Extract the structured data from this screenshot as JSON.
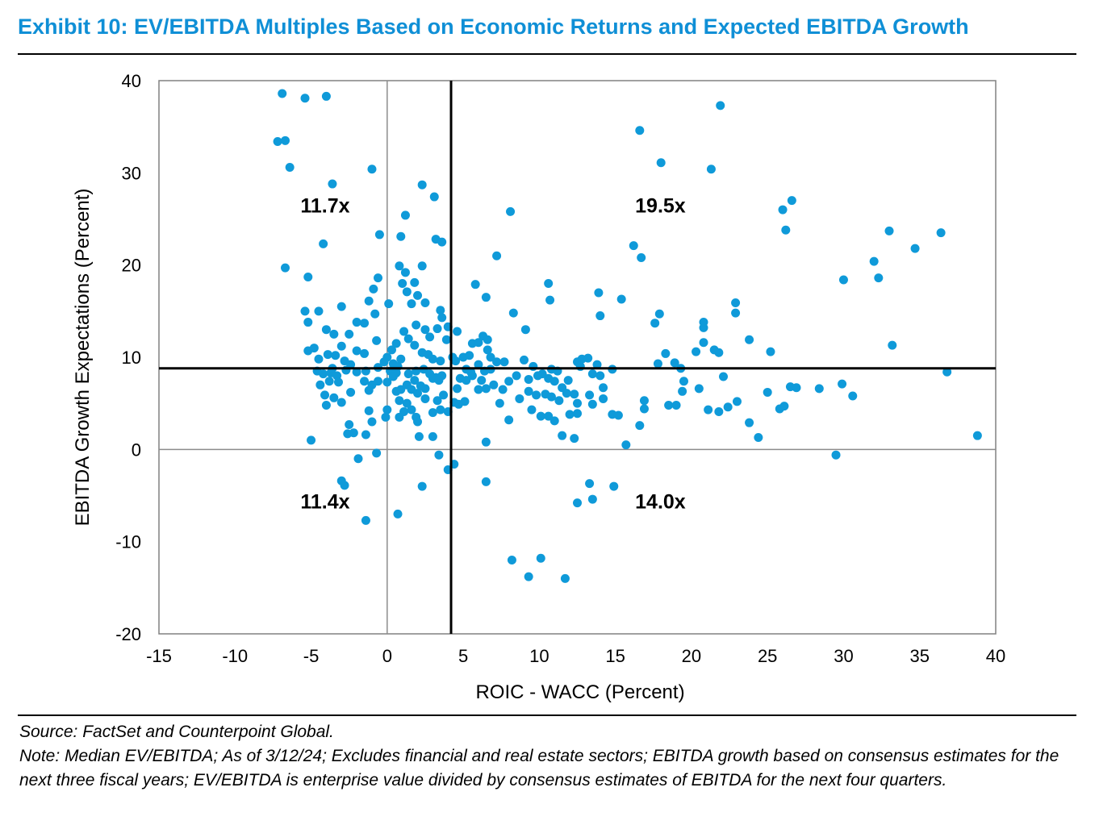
{
  "colors": {
    "title": "#0f8fd6",
    "points": "#0f9ad9",
    "axis": "#000000",
    "zero_lines": "#8c8c8c"
  },
  "footer": {
    "source": "Source: FactSet and Counterpoint Global.",
    "note": "Note: Median EV/EBITDA; As of 3/12/24; Excludes financial and real estate sectors; EBITDA growth based on consensus estimates for the next three fiscal years; EV/EBITDA is enterprise value divided by consensus estimates of EBITDA for the next four quarters."
  },
  "chart_data": {
    "type": "scatter",
    "title": "Exhibit 10: EV/EBITDA Multiples Based on Economic Returns and Expected EBITDA Growth",
    "xlabel": "ROIC - WACC (Percent)",
    "ylabel": "EBITDA Growth Expectations (Percent)",
    "xlim": [
      -15,
      40
    ],
    "ylim": [
      -20,
      40
    ],
    "xticks": [
      -15,
      -10,
      -5,
      0,
      5,
      10,
      15,
      20,
      25,
      30,
      35,
      40
    ],
    "yticks": [
      -20,
      -10,
      0,
      10,
      20,
      30,
      40
    ],
    "divider_x": 4.2,
    "divider_y": 8.8,
    "quadrant_labels": [
      {
        "text": "11.7x",
        "x": -5.7,
        "y": 25.7
      },
      {
        "text": "19.5x",
        "x": 16.3,
        "y": 25.7
      },
      {
        "text": "11.4x",
        "x": -5.7,
        "y": -6.4
      },
      {
        "text": "14.0x",
        "x": 16.3,
        "y": -6.4
      }
    ],
    "points": [
      [
        -6.9,
        38.6
      ],
      [
        -5.4,
        38.1
      ],
      [
        -4.0,
        38.3
      ],
      [
        -7.2,
        33.4
      ],
      [
        -6.7,
        33.5
      ],
      [
        -6.4,
        30.6
      ],
      [
        -1.0,
        30.4
      ],
      [
        -3.6,
        28.8
      ],
      [
        -4.2,
        22.3
      ],
      [
        -0.5,
        23.3
      ],
      [
        -6.7,
        19.7
      ],
      [
        -5.2,
        18.7
      ],
      [
        -5.4,
        15.0
      ],
      [
        -4.5,
        15.0
      ],
      [
        -5.2,
        13.8
      ],
      [
        -3.0,
        15.5
      ],
      [
        -2.0,
        13.8
      ],
      [
        -4.0,
        13.0
      ],
      [
        -3.5,
        12.5
      ],
      [
        -2.5,
        12.5
      ],
      [
        -5.2,
        10.7
      ],
      [
        -4.8,
        11.0
      ],
      [
        -4.5,
        9.8
      ],
      [
        -3.9,
        10.3
      ],
      [
        -3.4,
        10.2
      ],
      [
        -3.0,
        11.2
      ],
      [
        -2.0,
        10.7
      ],
      [
        -1.5,
        10.4
      ],
      [
        -2.8,
        9.6
      ],
      [
        -2.4,
        9.2
      ],
      [
        -3.6,
        8.8
      ],
      [
        -4.2,
        8.2
      ],
      [
        -4.6,
        8.5
      ],
      [
        -3.7,
        8.3
      ],
      [
        -3.3,
        8.0
      ],
      [
        -2.7,
        8.6
      ],
      [
        -2.0,
        8.4
      ],
      [
        -1.4,
        8.5
      ],
      [
        -3.8,
        7.4
      ],
      [
        -4.4,
        7.0
      ],
      [
        -3.2,
        7.3
      ],
      [
        -1.5,
        7.4
      ],
      [
        -1.0,
        7.0
      ],
      [
        -0.6,
        7.4
      ],
      [
        -4.1,
        5.9
      ],
      [
        -3.5,
        5.6
      ],
      [
        -3.0,
        5.1
      ],
      [
        -2.4,
        6.2
      ],
      [
        -1.2,
        6.4
      ],
      [
        -4.0,
        4.8
      ],
      [
        -1.2,
        4.2
      ],
      [
        -1.0,
        3.0
      ],
      [
        -2.5,
        2.7
      ],
      [
        -2.2,
        1.8
      ],
      [
        -2.6,
        1.7
      ],
      [
        -1.4,
        1.6
      ],
      [
        -5.0,
        1.0
      ],
      [
        -1.9,
        -1.0
      ],
      [
        -0.7,
        -0.4
      ],
      [
        -3.0,
        -3.4
      ],
      [
        -2.8,
        -3.9
      ],
      [
        -1.4,
        -7.7
      ],
      [
        0.7,
        -7.0
      ],
      [
        -1.2,
        16.1
      ],
      [
        -0.9,
        17.4
      ],
      [
        -0.6,
        18.6
      ],
      [
        -0.8,
        14.7
      ],
      [
        0.1,
        15.8
      ],
      [
        -1.5,
        13.7
      ],
      [
        -0.7,
        11.8
      ],
      [
        0.0,
        10.0
      ],
      [
        0.6,
        11.5
      ],
      [
        0.3,
        10.8
      ],
      [
        0.9,
        9.8
      ],
      [
        1.1,
        12.8
      ],
      [
        0.8,
        19.9
      ],
      [
        1.2,
        19.2
      ],
      [
        1.0,
        18.0
      ],
      [
        1.3,
        17.1
      ],
      [
        1.2,
        25.4
      ],
      [
        0.9,
        23.1
      ],
      [
        2.3,
        28.7
      ],
      [
        3.1,
        27.4
      ],
      [
        2.3,
        19.9
      ],
      [
        1.8,
        18.1
      ],
      [
        2.0,
        16.7
      ],
      [
        1.6,
        15.8
      ],
      [
        2.5,
        15.9
      ],
      [
        1.9,
        13.5
      ],
      [
        2.5,
        13.0
      ],
      [
        1.4,
        12.0
      ],
      [
        1.8,
        11.3
      ],
      [
        2.3,
        10.5
      ],
      [
        2.7,
        10.3
      ],
      [
        3.0,
        9.8
      ],
      [
        3.5,
        9.6
      ],
      [
        2.8,
        12.2
      ],
      [
        3.3,
        13.1
      ],
      [
        3.6,
        14.3
      ],
      [
        3.2,
        22.8
      ],
      [
        3.6,
        22.5
      ],
      [
        3.5,
        15.1
      ],
      [
        0.4,
        9.3
      ],
      [
        0.7,
        9.0
      ],
      [
        -0.2,
        9.5
      ],
      [
        -0.6,
        8.9
      ],
      [
        0.2,
        8.5
      ],
      [
        0.6,
        8.3
      ],
      [
        1.4,
        8.2
      ],
      [
        1.9,
        8.5
      ],
      [
        2.4,
        8.7
      ],
      [
        2.8,
        8.2
      ],
      [
        3.2,
        7.8
      ],
      [
        3.6,
        8.0
      ],
      [
        0.0,
        7.3
      ],
      [
        0.4,
        7.9
      ],
      [
        0.9,
        6.5
      ],
      [
        1.3,
        7.0
      ],
      [
        1.8,
        7.5
      ],
      [
        2.2,
        6.9
      ],
      [
        2.5,
        6.6
      ],
      [
        3.0,
        7.7
      ],
      [
        3.4,
        7.5
      ],
      [
        1.6,
        6.5
      ],
      [
        0.6,
        6.3
      ],
      [
        2.0,
        6.1
      ],
      [
        0.8,
        5.3
      ],
      [
        1.3,
        5.0
      ],
      [
        2.5,
        5.5
      ],
      [
        3.3,
        5.3
      ],
      [
        3.7,
        5.9
      ],
      [
        0.0,
        4.3
      ],
      [
        1.1,
        4.1
      ],
      [
        1.6,
        4.3
      ],
      [
        1.9,
        3.5
      ],
      [
        2.0,
        3.0
      ],
      [
        3.0,
        4.0
      ],
      [
        3.5,
        4.3
      ],
      [
        4.0,
        4.1
      ],
      [
        -0.1,
        3.5
      ],
      [
        0.8,
        3.5
      ],
      [
        2.1,
        1.4
      ],
      [
        3.0,
        1.4
      ],
      [
        3.4,
        -0.6
      ],
      [
        4.0,
        -2.2
      ],
      [
        4.4,
        -1.6
      ],
      [
        2.3,
        -4.0
      ],
      [
        4.0,
        13.3
      ],
      [
        4.6,
        12.8
      ],
      [
        3.9,
        11.9
      ],
      [
        4.3,
        10.0
      ],
      [
        4.5,
        9.6
      ],
      [
        4.8,
        7.7
      ],
      [
        4.6,
        6.6
      ],
      [
        4.4,
        5.1
      ],
      [
        4.7,
        4.9
      ],
      [
        5.1,
        5.2
      ],
      [
        5.0,
        10.0
      ],
      [
        5.4,
        10.2
      ],
      [
        5.6,
        11.5
      ],
      [
        6.0,
        11.6
      ],
      [
        6.3,
        12.3
      ],
      [
        6.6,
        11.9
      ],
      [
        6.6,
        10.8
      ],
      [
        6.8,
        10.0
      ],
      [
        5.8,
        17.9
      ],
      [
        6.5,
        16.5
      ],
      [
        7.2,
        21.0
      ],
      [
        8.1,
        25.8
      ],
      [
        8.3,
        14.8
      ],
      [
        9.1,
        13.0
      ],
      [
        10.6,
        18.0
      ],
      [
        10.7,
        16.2
      ],
      [
        13.9,
        17.0
      ],
      [
        14.0,
        14.5
      ],
      [
        15.4,
        16.3
      ],
      [
        5.2,
        8.7
      ],
      [
        5.5,
        8.4
      ],
      [
        6.0,
        9.2
      ],
      [
        6.4,
        8.5
      ],
      [
        6.8,
        8.7
      ],
      [
        7.2,
        9.5
      ],
      [
        7.7,
        9.5
      ],
      [
        5.2,
        7.5
      ],
      [
        5.6,
        8.0
      ],
      [
        6.2,
        7.5
      ],
      [
        6.5,
        6.6
      ],
      [
        7.0,
        7.0
      ],
      [
        7.6,
        6.5
      ],
      [
        8.0,
        7.4
      ],
      [
        8.5,
        8.0
      ],
      [
        6.0,
        6.5
      ],
      [
        7.4,
        5.0
      ],
      [
        8.7,
        5.5
      ],
      [
        8.0,
        3.2
      ],
      [
        6.5,
        0.8
      ],
      [
        9.0,
        9.7
      ],
      [
        9.6,
        9.0
      ],
      [
        10.2,
        8.2
      ],
      [
        10.8,
        8.7
      ],
      [
        11.2,
        8.5
      ],
      [
        9.3,
        7.6
      ],
      [
        9.9,
        8.0
      ],
      [
        10.6,
        7.7
      ],
      [
        11.0,
        7.4
      ],
      [
        11.5,
        6.7
      ],
      [
        11.9,
        7.5
      ],
      [
        9.3,
        6.3
      ],
      [
        9.8,
        5.9
      ],
      [
        10.4,
        6.0
      ],
      [
        10.8,
        5.7
      ],
      [
        11.3,
        5.3
      ],
      [
        11.8,
        6.1
      ],
      [
        12.3,
        6.0
      ],
      [
        12.5,
        5.0
      ],
      [
        9.5,
        4.3
      ],
      [
        10.1,
        3.6
      ],
      [
        10.6,
        3.6
      ],
      [
        11.0,
        3.1
      ],
      [
        12.0,
        3.8
      ],
      [
        12.5,
        3.9
      ],
      [
        11.5,
        1.5
      ],
      [
        12.3,
        1.2
      ],
      [
        12.5,
        9.5
      ],
      [
        12.8,
        9.8
      ],
      [
        13.2,
        9.9
      ],
      [
        13.8,
        9.2
      ],
      [
        14.0,
        8.0
      ],
      [
        14.8,
        8.7
      ],
      [
        12.7,
        9.0
      ],
      [
        13.5,
        8.2
      ],
      [
        14.2,
        6.7
      ],
      [
        13.3,
        5.9
      ],
      [
        14.2,
        5.5
      ],
      [
        13.5,
        4.9
      ],
      [
        14.8,
        3.8
      ],
      [
        15.2,
        3.7
      ],
      [
        15.7,
        0.5
      ],
      [
        12.5,
        -5.8
      ],
      [
        13.3,
        -3.7
      ],
      [
        13.5,
        -5.4
      ],
      [
        14.9,
        -4.0
      ],
      [
        6.5,
        -3.5
      ],
      [
        8.2,
        -12.0
      ],
      [
        9.3,
        -13.8
      ],
      [
        10.1,
        -11.8
      ],
      [
        11.7,
        -14.0
      ],
      [
        16.6,
        34.6
      ],
      [
        18.0,
        31.1
      ],
      [
        21.9,
        37.3
      ],
      [
        21.3,
        30.4
      ],
      [
        16.2,
        22.1
      ],
      [
        16.7,
        20.8
      ],
      [
        17.6,
        13.7
      ],
      [
        17.9,
        14.7
      ],
      [
        17.8,
        9.3
      ],
      [
        18.3,
        10.4
      ],
      [
        18.9,
        9.4
      ],
      [
        19.3,
        8.8
      ],
      [
        19.5,
        7.4
      ],
      [
        20.3,
        10.6
      ],
      [
        20.8,
        11.6
      ],
      [
        20.8,
        13.2
      ],
      [
        20.8,
        13.8
      ],
      [
        21.5,
        10.8
      ],
      [
        21.8,
        10.5
      ],
      [
        22.1,
        7.9
      ],
      [
        22.9,
        15.9
      ],
      [
        22.9,
        14.8
      ],
      [
        23.8,
        11.9
      ],
      [
        25.2,
        10.6
      ],
      [
        16.6,
        2.6
      ],
      [
        16.9,
        4.4
      ],
      [
        16.9,
        5.3
      ],
      [
        18.5,
        4.8
      ],
      [
        19.0,
        4.8
      ],
      [
        19.4,
        6.3
      ],
      [
        20.5,
        6.6
      ],
      [
        21.1,
        4.3
      ],
      [
        21.8,
        4.1
      ],
      [
        22.4,
        4.6
      ],
      [
        23.0,
        5.2
      ],
      [
        23.8,
        2.9
      ],
      [
        24.4,
        1.3
      ],
      [
        25.0,
        6.2
      ],
      [
        25.8,
        4.4
      ],
      [
        26.1,
        4.7
      ],
      [
        26.5,
        6.8
      ],
      [
        26.9,
        6.7
      ],
      [
        28.4,
        6.6
      ],
      [
        29.5,
        -0.6
      ],
      [
        29.9,
        7.1
      ],
      [
        30.6,
        5.8
      ],
      [
        26.0,
        26.0
      ],
      [
        26.6,
        27.0
      ],
      [
        26.2,
        23.8
      ],
      [
        32.0,
        20.4
      ],
      [
        32.3,
        18.6
      ],
      [
        30.0,
        18.4
      ],
      [
        33.0,
        23.7
      ],
      [
        34.7,
        21.8
      ],
      [
        36.4,
        23.5
      ],
      [
        33.2,
        11.3
      ],
      [
        36.8,
        8.4
      ],
      [
        38.8,
        1.5
      ]
    ]
  }
}
